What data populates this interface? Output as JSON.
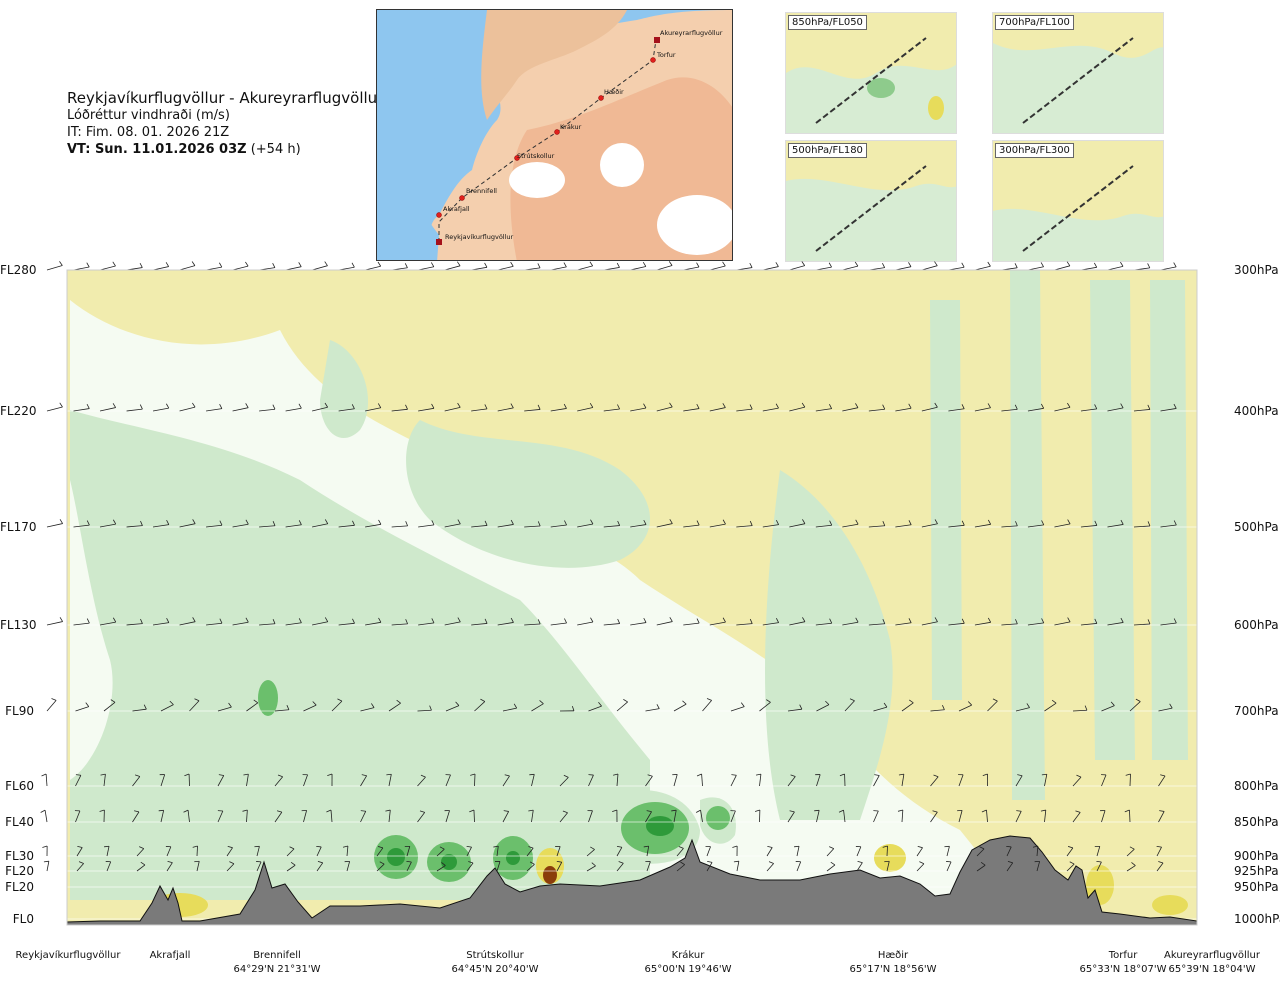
{
  "title": {
    "route": "Reykjavíkurflugvöllur - Akureyrarflugvöllur",
    "variable": "Lóðréttur vindhraði (m/s)",
    "issue_time": "IT: Fim. 08. 01. 2026 21Z",
    "valid_time": "VT: Sun. 11.01.2026 03Z",
    "lead": "(+54 h)"
  },
  "map": {
    "waypoints": [
      "Akureyrarflugvöllur",
      "Torfur",
      "Hæðir",
      "Krákur",
      "Strútskollur",
      "Brennifell",
      "Akrafjall",
      "Reykjavíkurflugvöllur"
    ]
  },
  "thumbnails": [
    {
      "label": "850hPa/FL050"
    },
    {
      "label": "700hPa/FL100"
    },
    {
      "label": "500hPa/FL180"
    },
    {
      "label": "300hPa/FL300"
    }
  ],
  "colors": {
    "up_strong": "#2e9a3a",
    "up_mid": "#6bbf6c",
    "up_light": "#cfe9cc",
    "neutral": "#f5fbf2",
    "down_light": "#f1ecae",
    "down_mid": "#e7dc5b",
    "down_strong": "#8a3d0b",
    "terrain": "#7a7a7a"
  },
  "chart_data": {
    "type": "heatmap",
    "variable": "Lóðréttur vindhraði (m/s)",
    "levels": [
      {
        "fl": "FL280",
        "hpa": "300hPa"
      },
      {
        "fl": "FL220",
        "hpa": "400hPa"
      },
      {
        "fl": "FL170",
        "hpa": "500hPa"
      },
      {
        "fl": "FL130",
        "hpa": "600hPa"
      },
      {
        "fl": "FL90",
        "hpa": "700hPa"
      },
      {
        "fl": "FL60",
        "hpa": "800hPa"
      },
      {
        "fl": "FL40",
        "hpa": "850hPa"
      },
      {
        "fl": "FL30",
        "hpa": "900hPa"
      },
      {
        "fl": "FL20",
        "hpa": "925hPa"
      },
      {
        "fl": "FL20",
        "hpa": "950hPa"
      },
      {
        "fl": "FL0",
        "hpa": "1000hPa"
      }
    ],
    "stations": [
      {
        "name": "Reykjavíkurflugvöllur",
        "coord": ""
      },
      {
        "name": "Akrafjall",
        "coord": ""
      },
      {
        "name": "Brennifell",
        "coord": "64°29'N 21°31'W"
      },
      {
        "name": "Strútskollur",
        "coord": "64°45'N 20°40'W"
      },
      {
        "name": "Krákur",
        "coord": "65°00'N 19°46'W"
      },
      {
        "name": "Hæðir",
        "coord": "65°17'N 18°56'W"
      },
      {
        "name": "Torfur",
        "coord": "65°33'N 18°07'W"
      },
      {
        "name": "Akureyrarflugvöllur",
        "coord": "65°39'N 18°04'W"
      }
    ]
  }
}
